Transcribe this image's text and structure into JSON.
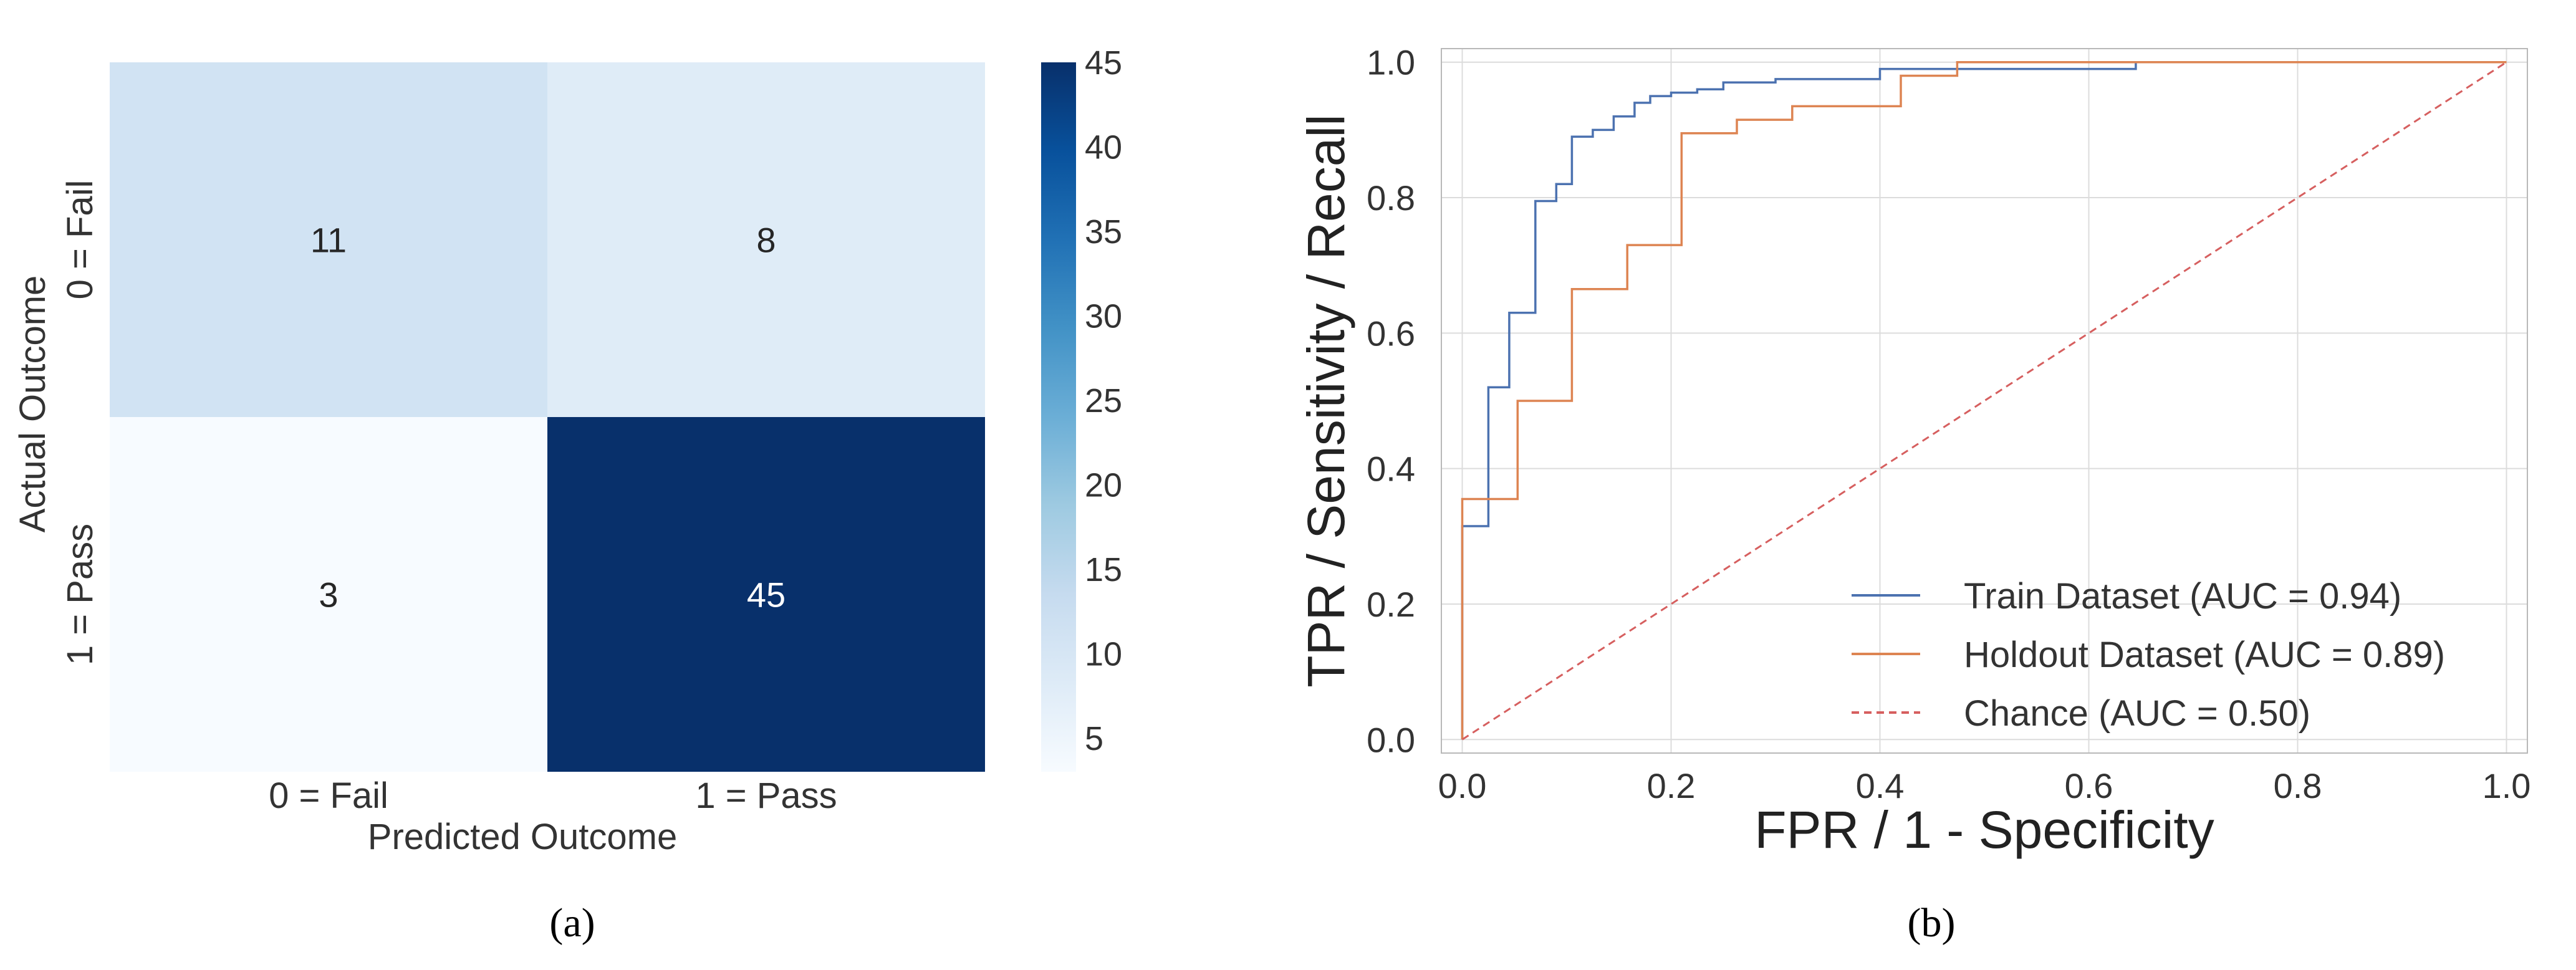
{
  "chart_data": [
    {
      "type": "heatmap",
      "panel_label": "(a)",
      "xlabel": "Predicted Outcome",
      "ylabel": "Actual Outcome",
      "x_categories": [
        "0 = Fail",
        "1 = Pass"
      ],
      "y_categories": [
        "0 = Fail",
        "1 = Pass"
      ],
      "matrix": [
        [
          11,
          8
        ],
        [
          3,
          45
        ]
      ],
      "colorbar": {
        "min": 3,
        "max": 45,
        "ticks": [
          5,
          10,
          15,
          20,
          25,
          30,
          35,
          40,
          45
        ]
      },
      "colormap": [
        "#f7fbff",
        "#deebf7",
        "#c6dbef",
        "#9ecae1",
        "#6baed6",
        "#4292c6",
        "#2171b5",
        "#08519c",
        "#08306b"
      ]
    },
    {
      "type": "line",
      "panel_label": "(b)",
      "xlabel": "FPR / 1 - Specificity",
      "ylabel": "TPR / Sensitivity / Recall",
      "xlim": [
        0,
        1
      ],
      "ylim": [
        0,
        1
      ],
      "xticks": [
        "0.0",
        "0.2",
        "0.4",
        "0.6",
        "0.8",
        "1.0"
      ],
      "yticks": [
        "0.0",
        "0.2",
        "0.4",
        "0.6",
        "0.8",
        "1.0"
      ],
      "grid": true,
      "legend_position": "lower-right",
      "series": [
        {
          "name": "Train Dataset (AUC = 0.94)",
          "color": "#4c72b0",
          "style": "step",
          "x": [
            0,
            0,
            0.025,
            0.025,
            0.045,
            0.045,
            0.07,
            0.07,
            0.09,
            0.09,
            0.105,
            0.105,
            0.125,
            0.125,
            0.145,
            0.145,
            0.165,
            0.165,
            0.18,
            0.18,
            0.2,
            0.2,
            0.225,
            0.225,
            0.25,
            0.25,
            0.3,
            0.3,
            0.34,
            0.34,
            0.4,
            0.4,
            0.48,
            0.48,
            0.645,
            0.645,
            1.0
          ],
          "y": [
            0,
            0.315,
            0.315,
            0.52,
            0.52,
            0.63,
            0.63,
            0.795,
            0.795,
            0.82,
            0.82,
            0.89,
            0.89,
            0.9,
            0.9,
            0.92,
            0.92,
            0.94,
            0.94,
            0.95,
            0.95,
            0.955,
            0.955,
            0.96,
            0.96,
            0.97,
            0.97,
            0.975,
            0.975,
            0.975,
            0.975,
            0.99,
            0.99,
            0.99,
            0.99,
            1.0,
            1.0
          ]
        },
        {
          "name": "Holdout Dataset (AUC = 0.89)",
          "color": "#dd8452",
          "style": "step",
          "x": [
            0,
            0,
            0.053,
            0.053,
            0.105,
            0.105,
            0.158,
            0.158,
            0.21,
            0.21,
            0.263,
            0.263,
            0.316,
            0.316,
            0.42,
            0.42,
            0.474,
            0.474,
            1.0
          ],
          "y": [
            0,
            0.355,
            0.355,
            0.5,
            0.5,
            0.665,
            0.665,
            0.73,
            0.73,
            0.895,
            0.895,
            0.915,
            0.915,
            0.935,
            0.935,
            0.98,
            0.98,
            1.0,
            1.0
          ]
        },
        {
          "name": "Chance (AUC = 0.50)",
          "color": "#d65f5f",
          "style": "dashed",
          "x": [
            0,
            1
          ],
          "y": [
            0,
            1
          ]
        }
      ]
    }
  ]
}
